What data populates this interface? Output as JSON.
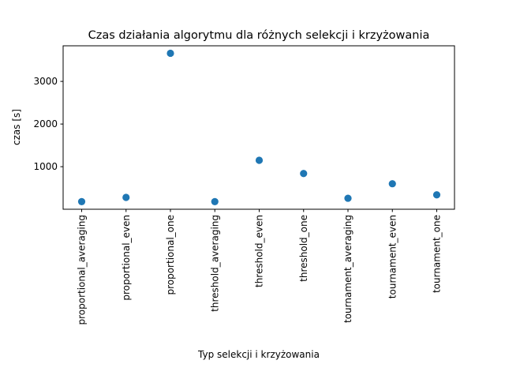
{
  "chart_data": {
    "type": "scatter",
    "title": "Czas działania algorytmu dla różnych selekcji i krzyżowania",
    "xlabel": "Typ selekcji i krzyżowania",
    "ylabel": "czas [s]",
    "categories": [
      "proportional_averaging",
      "proportional_even",
      "proportional_one",
      "threshold_averaging",
      "threshold_even",
      "threshold_one",
      "tournament_averaging",
      "tournament_even",
      "tournament_one"
    ],
    "values": [
      180,
      280,
      3660,
      180,
      1150,
      840,
      260,
      600,
      340
    ],
    "ylim": [
      2,
      3835
    ],
    "yticks": [
      1000,
      2000,
      3000
    ],
    "ytick_labels": [
      "1000",
      "2000",
      "3000"
    ],
    "grid": false,
    "marker_color": "#1f77b4"
  }
}
